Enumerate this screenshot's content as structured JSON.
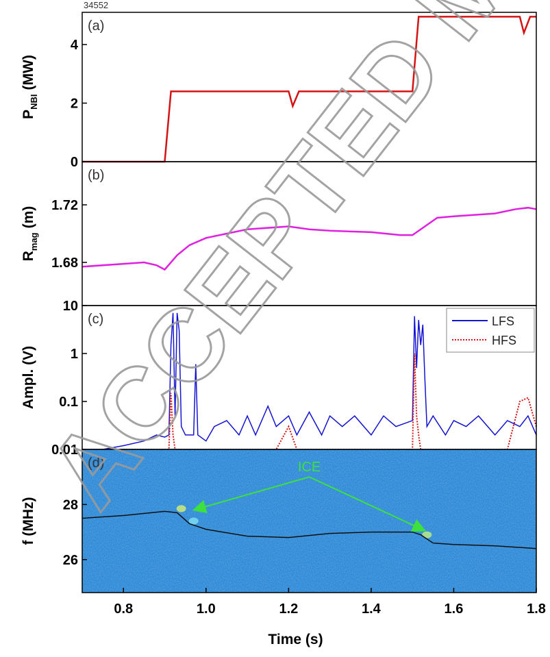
{
  "watermark": "ACCEPTED M",
  "shot": "34552",
  "chart_data": [
    {
      "type": "line",
      "label": "(a)",
      "ylabel": {
        "main": "P",
        "sub": "NBI",
        "rest": "(MW)"
      },
      "xlim": [
        0.7,
        1.8
      ],
      "ylim": [
        0,
        5.1
      ],
      "yticks": [
        0,
        2,
        4
      ],
      "x": [
        0.7,
        0.9,
        0.915,
        1.2,
        1.21,
        1.225,
        1.5,
        1.515,
        1.76,
        1.77,
        1.785,
        1.8
      ],
      "series": [
        {
          "color": "#d41414",
          "values": [
            0,
            0,
            2.4,
            2.4,
            1.9,
            2.4,
            2.4,
            4.95,
            4.95,
            4.4,
            4.95,
            4.95
          ]
        }
      ]
    },
    {
      "type": "line",
      "label": "(b)",
      "ylabel": {
        "main": "R",
        "sub": "mag",
        "rest": "(m)"
      },
      "xlim": [
        0.7,
        1.8
      ],
      "ylim": [
        1.65,
        1.75
      ],
      "yticks": [
        1.68,
        1.72
      ],
      "x": [
        0.7,
        0.8,
        0.85,
        0.88,
        0.9,
        0.93,
        0.96,
        1.0,
        1.05,
        1.1,
        1.2,
        1.25,
        1.3,
        1.4,
        1.47,
        1.5,
        1.53,
        1.56,
        1.6,
        1.7,
        1.75,
        1.78,
        1.8
      ],
      "series": [
        {
          "color": "#e020e0",
          "values": [
            1.677,
            1.679,
            1.68,
            1.678,
            1.675,
            1.685,
            1.692,
            1.697,
            1.7,
            1.703,
            1.705,
            1.703,
            1.702,
            1.701,
            1.699,
            1.699,
            1.705,
            1.711,
            1.712,
            1.714,
            1.717,
            1.718,
            1.717
          ]
        }
      ]
    },
    {
      "type": "line",
      "label": "(c)",
      "log_y": true,
      "legend": "upper right",
      "ylabel": {
        "main": "Ampl. (V)"
      },
      "xlim": [
        0.7,
        1.8
      ],
      "ylim": [
        0.01,
        10
      ],
      "yticks": [
        0.01,
        0.1,
        1,
        10
      ],
      "x": [
        0.7,
        0.75,
        0.8,
        0.85,
        0.88,
        0.9,
        0.91,
        0.915,
        0.92,
        0.925,
        0.93,
        0.935,
        0.94,
        0.95,
        0.97,
        0.975,
        0.98,
        1.0,
        1.02,
        1.05,
        1.08,
        1.1,
        1.12,
        1.15,
        1.17,
        1.2,
        1.22,
        1.25,
        1.28,
        1.3,
        1.33,
        1.36,
        1.4,
        1.43,
        1.46,
        1.5,
        1.505,
        1.51,
        1.515,
        1.52,
        1.525,
        1.53,
        1.535,
        1.55,
        1.58,
        1.6,
        1.63,
        1.66,
        1.7,
        1.73,
        1.76,
        1.78,
        1.8
      ],
      "series": [
        {
          "name": "LFS",
          "color": "#1414d0",
          "style": "solid",
          "values": [
            0.01,
            0.01,
            0.012,
            0.015,
            0.02,
            0.018,
            0.02,
            1.5,
            7,
            0.05,
            7,
            3,
            0.03,
            0.02,
            0.02,
            0.6,
            0.02,
            0.015,
            0.03,
            0.04,
            0.02,
            0.05,
            0.02,
            0.08,
            0.03,
            0.05,
            0.02,
            0.06,
            0.02,
            0.05,
            0.03,
            0.05,
            0.02,
            0.05,
            0.03,
            0.04,
            6,
            0.5,
            5,
            1.5,
            4,
            0.3,
            0.03,
            0.05,
            0.02,
            0.04,
            0.03,
            0.05,
            0.02,
            0.04,
            0.03,
            0.05,
            0.02
          ]
        },
        {
          "name": "HFS",
          "color": "#d41414",
          "style": "dotted",
          "values": [
            0.01,
            0.01,
            0.01,
            0.01,
            0.01,
            0.01,
            0.01,
            0.15,
            0.02,
            0.01,
            0.01,
            0.01,
            0.01,
            0.01,
            0.01,
            0.01,
            0.01,
            0.01,
            0.01,
            0.01,
            0.01,
            0.01,
            0.01,
            0.01,
            0.01,
            0.03,
            0.01,
            0.01,
            0.01,
            0.01,
            0.01,
            0.01,
            0.01,
            0.01,
            0.01,
            0.01,
            1,
            0.05,
            0.02,
            0.01,
            0.01,
            0.01,
            0.01,
            0.01,
            0.01,
            0.01,
            0.01,
            0.01,
            0.01,
            0.01,
            0.1,
            0.12,
            0.03
          ]
        }
      ]
    },
    {
      "type": "spectrogram",
      "label": "(d)",
      "annotation": "ICE",
      "ylabel": {
        "main": "f (MHz)"
      },
      "xlabel": "Time (s)",
      "xlim": [
        0.7,
        1.8
      ],
      "ylim": [
        24.8,
        30.0
      ],
      "yticks": [
        26,
        28
      ],
      "xticks": [
        0.8,
        {
          "value": 1,
          "label": "1.0"
        },
        1.2,
        1.4,
        1.6,
        1.8
      ],
      "x": [
        0.7,
        0.8,
        0.9,
        0.93,
        0.96,
        1.0,
        1.1,
        1.2,
        1.3,
        1.4,
        1.5,
        1.52,
        1.55,
        1.6,
        1.7,
        1.8
      ],
      "series": [
        {
          "color": "#101010",
          "values": [
            27.5,
            27.6,
            27.75,
            27.7,
            27.3,
            27.1,
            26.85,
            26.8,
            26.95,
            27.0,
            27.0,
            26.9,
            26.6,
            26.55,
            26.5,
            26.4
          ]
        }
      ]
    }
  ]
}
